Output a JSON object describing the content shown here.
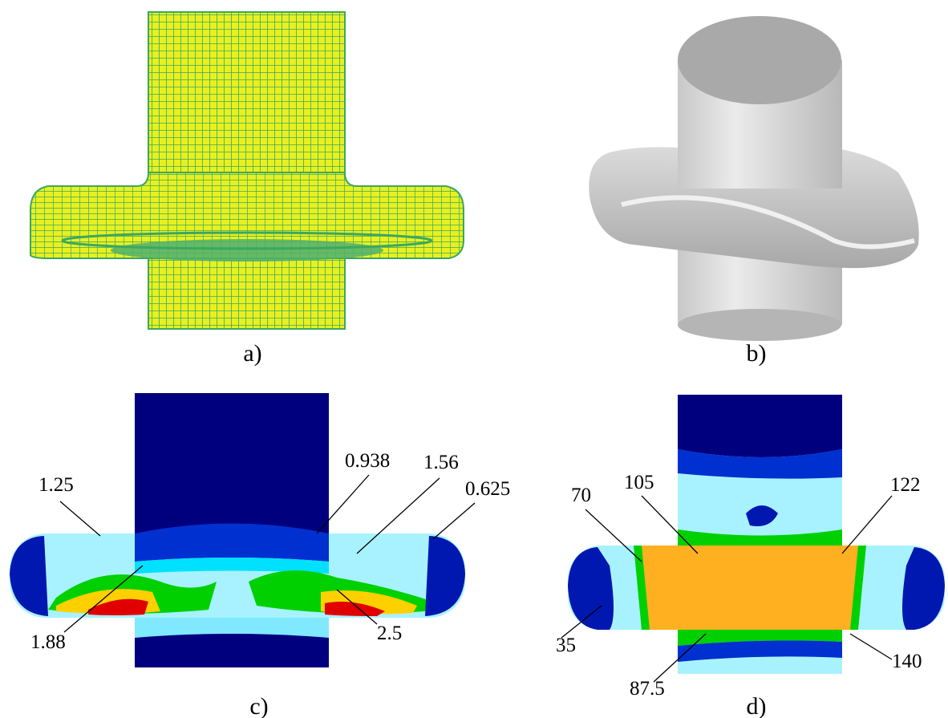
{
  "panels": [
    {
      "caption": "a)"
    },
    {
      "caption": "b)"
    },
    {
      "caption": "c)",
      "labels": [
        "1.25",
        "0.938",
        "1.56",
        "0.625",
        "1.88",
        "2.5"
      ]
    },
    {
      "caption": "d)",
      "labels": [
        "70",
        "105",
        "122",
        "35",
        "87.5",
        "140"
      ]
    }
  ]
}
